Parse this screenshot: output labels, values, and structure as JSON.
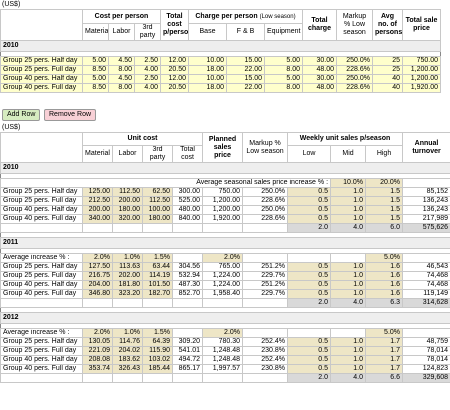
{
  "top_table": {
    "unit": "(US$)",
    "header": {
      "cost_per_person": "Cost per person",
      "total_cost": "Total cost p/person",
      "charge_per_person": "Charge per person",
      "charge_note": "(Low season)",
      "total_charge": "Total charge",
      "markup": "Markup % Low season",
      "avg_persons": "Avg no. of persons",
      "total_sale": "Total sale price",
      "material": "Material",
      "labor": "Labor",
      "third_party": "3rd party",
      "base": "Base",
      "fb": "F & B",
      "equipment": "Equipment"
    },
    "section": "2010",
    "rows": [
      [
        "Group 25 pers. Half day",
        "5.00",
        "4.50",
        "2.50",
        "12.00",
        "10.00",
        "15.00",
        "5.00",
        "30.00",
        "250.0%",
        "25",
        "750.00"
      ],
      [
        "Group 25 pers. Full day",
        "8.50",
        "8.00",
        "4.00",
        "20.50",
        "18.00",
        "22.00",
        "8.00",
        "48.00",
        "228.6%",
        "25",
        "1,200.00"
      ],
      [
        "Group 40 pers. Half day",
        "5.00",
        "4.50",
        "2.50",
        "12.00",
        "10.00",
        "15.00",
        "5.00",
        "30.00",
        "250.0%",
        "40",
        "1,200.00"
      ],
      [
        "Group 40 pers. Full day",
        "8.50",
        "8.00",
        "4.00",
        "20.50",
        "18.00",
        "22.00",
        "8.00",
        "48.00",
        "228.6%",
        "40",
        "1,920.00"
      ]
    ]
  },
  "buttons": {
    "add": "Add Row",
    "remove": "Remove Row"
  },
  "bottom_table": {
    "unit": "(US$)",
    "header": {
      "unit_cost": "Unit cost",
      "planned": "Planned sales price",
      "markup": "Markup % Low season",
      "weekly": "Weekly unit sales p/season",
      "turnover": "Annual turnover",
      "material": "Material",
      "labor": "Labor",
      "third_party": "3rd party",
      "total_cost": "Total cost",
      "low": "Low",
      "mid": "Mid",
      "high": "High"
    },
    "sections": [
      {
        "year": "2010",
        "increase_label": "Average seasonal sales price increase % :",
        "increase": [
          null,
          null,
          null,
          null,
          null,
          null,
          null,
          "10.0%",
          "20.0%",
          null
        ],
        "rows": [
          [
            "Group 25 pers. Half day",
            "125.00",
            "112.50",
            "62.50",
            "300.00",
            "750.00",
            "250.0%",
            "0.5",
            "1.0",
            "1.5",
            "85,152"
          ],
          [
            "Group 25 pers. Full day",
            "212.50",
            "200.00",
            "112.50",
            "525.00",
            "1,200.00",
            "228.6%",
            "0.5",
            "1.0",
            "1.5",
            "136,243"
          ],
          [
            "Group 40 pers. Half day",
            "200.00",
            "180.00",
            "100.00",
            "480.00",
            "1,200.00",
            "250.0%",
            "0.5",
            "1.0",
            "1.5",
            "136,243"
          ],
          [
            "Group 40 pers. Full day",
            "340.00",
            "320.00",
            "180.00",
            "840.00",
            "1,920.00",
            "228.6%",
            "0.5",
            "1.0",
            "1.5",
            "217,989"
          ]
        ],
        "totals": [
          null,
          null,
          null,
          null,
          null,
          null,
          "2.0",
          "4.0",
          "6.0",
          "575,626"
        ]
      },
      {
        "year": "2011",
        "increase_label": "Average increase % :",
        "increase": [
          "2.0%",
          "1.0%",
          "1.5%",
          null,
          "2.0%",
          null,
          null,
          null,
          "5.0%",
          null
        ],
        "rows": [
          [
            "Group 25 pers. Half day",
            "127.50",
            "113.63",
            "63.44",
            "304.56",
            "765.00",
            "251.2%",
            "0.5",
            "1.0",
            "1.6",
            "46,543"
          ],
          [
            "Group 25 pers. Full day",
            "216.75",
            "202.00",
            "114.19",
            "532.94",
            "1,224.00",
            "229.7%",
            "0.5",
            "1.0",
            "1.6",
            "74,468"
          ],
          [
            "Group 40 pers. Half day",
            "204.00",
            "181.80",
            "101.50",
            "487.30",
            "1,224.00",
            "251.2%",
            "0.5",
            "1.0",
            "1.6",
            "74,468"
          ],
          [
            "Group 40 pers. Full day",
            "346.80",
            "323.20",
            "182.70",
            "852.70",
            "1,958.40",
            "229.7%",
            "0.5",
            "1.0",
            "1.6",
            "119,149"
          ]
        ],
        "totals": [
          null,
          null,
          null,
          null,
          null,
          null,
          "2.0",
          "4.0",
          "6.3",
          "314,628"
        ]
      },
      {
        "year": "2012",
        "increase_label": "Average increase % :",
        "increase": [
          "2.0%",
          "1.0%",
          "1.5%",
          null,
          "2.0%",
          null,
          null,
          null,
          "5.0%",
          null
        ],
        "rows": [
          [
            "Group 25 pers. Half day",
            "130.05",
            "114.76",
            "64.39",
            "309.20",
            "780.30",
            "252.4%",
            "0.5",
            "1.0",
            "1.7",
            "48,759"
          ],
          [
            "Group 25 pers. Full day",
            "221.09",
            "204.02",
            "115.90",
            "541.01",
            "1,248.48",
            "230.8%",
            "0.5",
            "1.0",
            "1.7",
            "78,014"
          ],
          [
            "Group 40 pers. Half day",
            "208.08",
            "183.62",
            "103.02",
            "494.72",
            "1,248.48",
            "252.4%",
            "0.5",
            "1.0",
            "1.7",
            "78,014"
          ],
          [
            "Group 40 pers. Full day",
            "353.74",
            "326.43",
            "185.44",
            "865.17",
            "1,997.57",
            "230.8%",
            "0.5",
            "1.0",
            "1.7",
            "124,823"
          ]
        ],
        "totals": [
          null,
          null,
          null,
          null,
          null,
          null,
          "2.0",
          "4.0",
          "6.6",
          "329,608"
        ]
      }
    ]
  }
}
